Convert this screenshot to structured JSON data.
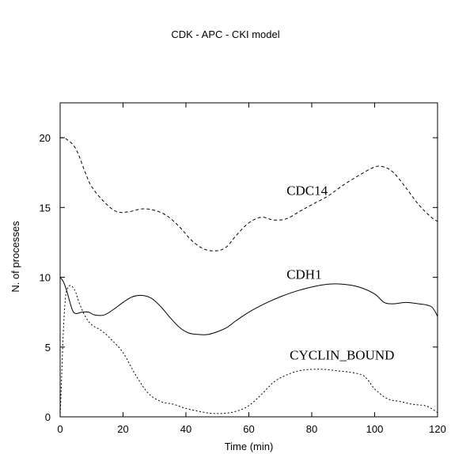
{
  "chart_data": {
    "type": "line",
    "title": "CDK - APC - CKI model",
    "xlabel": "Time (min)",
    "ylabel": "N. of processes",
    "xlim": [
      0,
      120
    ],
    "ylim": [
      0,
      22.5
    ],
    "xticks": [
      0,
      20,
      40,
      60,
      80,
      100,
      120
    ],
    "yticks": [
      0,
      5,
      10,
      15,
      20
    ],
    "xtick_labels": [
      "0",
      "20",
      "40",
      "60",
      "80",
      "100",
      "120"
    ],
    "ytick_labels": [
      "0",
      "5",
      "10",
      "15",
      "20"
    ],
    "grid": false,
    "legend": "none (inline series labels)",
    "series": [
      {
        "name": "CDC14",
        "line_style": "dashed",
        "color": "#000000",
        "x": [
          0,
          2,
          5,
          8,
          10,
          14,
          18,
          22,
          26,
          30,
          34,
          38,
          42,
          46,
          50,
          53,
          56,
          60,
          64,
          68,
          72,
          76,
          80,
          85,
          90,
          95,
          100,
          103,
          106,
          110,
          114,
          118,
          120
        ],
        "y": [
          20,
          19.9,
          19.2,
          17.5,
          16.5,
          15.4,
          14.7,
          14.7,
          14.9,
          14.8,
          14.4,
          13.6,
          12.6,
          12,
          11.9,
          12.2,
          13.0,
          13.9,
          14.3,
          14.1,
          14.2,
          14.7,
          15.2,
          15.8,
          16.6,
          17.3,
          17.9,
          17.9,
          17.5,
          16.4,
          15.2,
          14.3,
          14.0
        ]
      },
      {
        "name": "CDH1",
        "line_style": "solid",
        "color": "#000000",
        "x": [
          0,
          1,
          2,
          3,
          4,
          5,
          7,
          9,
          11,
          14,
          17,
          20,
          23,
          26,
          29,
          32,
          35,
          38,
          41,
          44,
          47,
          50,
          53,
          56,
          60,
          65,
          70,
          75,
          80,
          85,
          90,
          95,
          100,
          103,
          106,
          110,
          114,
          118,
          120
        ],
        "y": [
          10,
          9.7,
          9.1,
          8.3,
          7.6,
          7.4,
          7.5,
          7.5,
          7.3,
          7.3,
          7.7,
          8.2,
          8.6,
          8.7,
          8.5,
          7.9,
          7.1,
          6.4,
          6.0,
          5.9,
          5.9,
          6.1,
          6.4,
          6.9,
          7.5,
          8.1,
          8.6,
          9.0,
          9.3,
          9.5,
          9.5,
          9.3,
          8.8,
          8.2,
          8.1,
          8.2,
          8.1,
          7.9,
          7.2
        ]
      },
      {
        "name": "CYCLIN_BOUND",
        "line_style": "dotted",
        "color": "#000000",
        "x": [
          0,
          0.5,
          1,
          1.5,
          2,
          3,
          4,
          5,
          6,
          8,
          10,
          13,
          16,
          20,
          24,
          28,
          32,
          36,
          40,
          44,
          48,
          52,
          56,
          60,
          64,
          68,
          72,
          76,
          80,
          84,
          88,
          92,
          96,
          98,
          100,
          104,
          108,
          112,
          116,
          118,
          120
        ],
        "y": [
          0,
          3,
          6,
          8,
          9,
          9.4,
          9.3,
          8.9,
          8.2,
          7.2,
          6.6,
          6.2,
          5.6,
          4.6,
          3.0,
          1.7,
          1.1,
          0.9,
          0.6,
          0.4,
          0.25,
          0.25,
          0.4,
          0.8,
          1.6,
          2.5,
          3.0,
          3.3,
          3.4,
          3.4,
          3.3,
          3.2,
          3.0,
          2.6,
          2.0,
          1.3,
          1.1,
          0.9,
          0.8,
          0.6,
          0.3
        ]
      }
    ],
    "annotations": [
      {
        "text": "CDC14",
        "x": 72,
        "y": 15.9
      },
      {
        "text": "CDH1",
        "x": 72,
        "y": 9.9
      },
      {
        "text": "CYCLIN_BOUND",
        "x": 73,
        "y": 4.1
      }
    ]
  }
}
